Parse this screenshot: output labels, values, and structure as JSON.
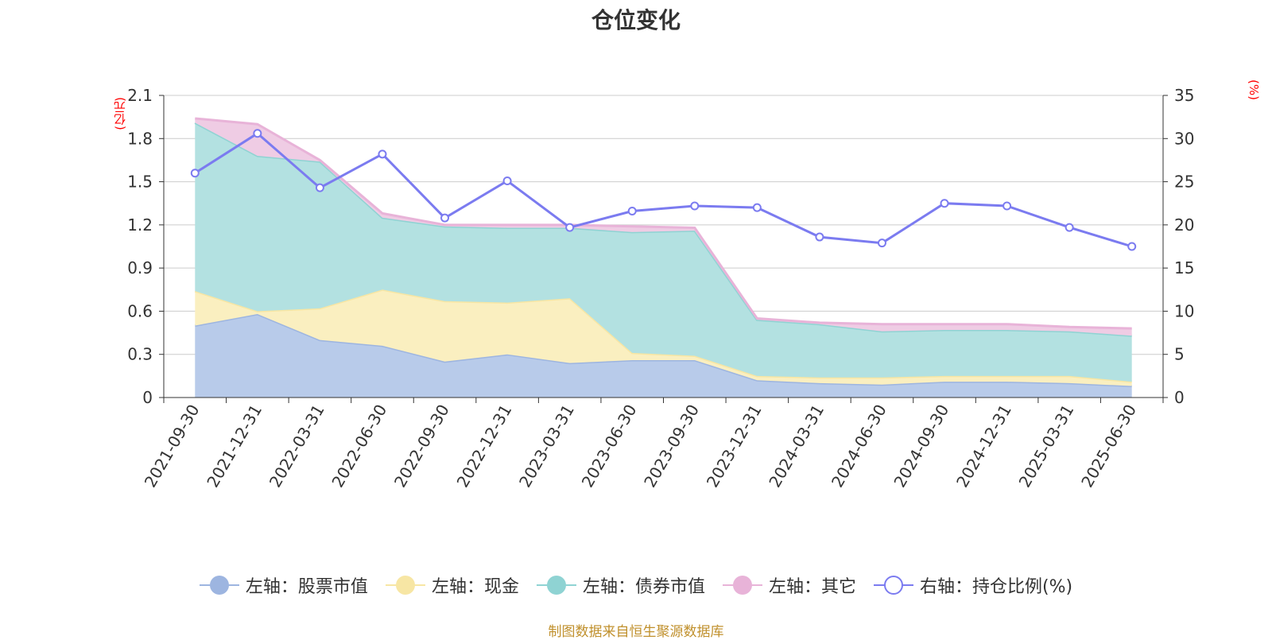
{
  "title": "仓位变化",
  "left_unit": "(亿元)",
  "right_unit": "(%)",
  "source": "制图数据来自恒生聚源数据库",
  "legend": [
    {
      "label": "左轴：股票市值",
      "color": "#9db5e0",
      "marker": "filled"
    },
    {
      "label": "左轴：现金",
      "color": "#f7e6a4",
      "marker": "filled"
    },
    {
      "label": "左轴：债券市值",
      "color": "#8fd3d3",
      "marker": "filled"
    },
    {
      "label": "左轴：其它",
      "color": "#e8b3d8",
      "marker": "filled"
    },
    {
      "label": "右轴：持仓比例(%)",
      "color": "#7b7bf0",
      "marker": "hollow"
    }
  ],
  "chart_data": {
    "type": "area",
    "title": "仓位变化",
    "categories": [
      "2021-09-30",
      "2021-12-31",
      "2022-03-31",
      "2022-06-30",
      "2022-09-30",
      "2022-12-31",
      "2023-03-31",
      "2023-06-30",
      "2023-09-30",
      "2023-12-31",
      "2024-03-31",
      "2024-06-30",
      "2024-09-30",
      "2024-12-31",
      "2025-03-31",
      "2025-06-30"
    ],
    "left_axis": {
      "label": "(亿元)",
      "ylim": [
        0,
        2.1
      ],
      "ticks": [
        "0",
        "0.3",
        "0.6",
        "0.9",
        "1.2",
        "1.5",
        "1.8",
        "2.1"
      ]
    },
    "right_axis": {
      "label": "(%)",
      "ylim": [
        0,
        35
      ],
      "ticks": [
        "0",
        "5",
        "10",
        "15",
        "20",
        "25",
        "30",
        "35"
      ]
    },
    "stacked_series": [
      {
        "name": "左轴：股票市值",
        "color": "#9db5e0",
        "fill": "#b8cbea",
        "values": [
          0.5,
          0.58,
          0.4,
          0.36,
          0.25,
          0.3,
          0.24,
          0.26,
          0.26,
          0.12,
          0.1,
          0.09,
          0.11,
          0.11,
          0.1,
          0.08
        ]
      },
      {
        "name": "左轴：现金",
        "color": "#f7e6a4",
        "fill": "#faefc0",
        "values": [
          0.24,
          0.02,
          0.22,
          0.39,
          0.42,
          0.36,
          0.45,
          0.05,
          0.03,
          0.03,
          0.04,
          0.05,
          0.04,
          0.04,
          0.05,
          0.03
        ]
      },
      {
        "name": "左轴：债券市值",
        "color": "#8fd3d3",
        "fill": "#b3e1e1",
        "values": [
          1.17,
          1.08,
          1.02,
          0.5,
          0.52,
          0.52,
          0.49,
          0.84,
          0.87,
          0.39,
          0.37,
          0.32,
          0.32,
          0.32,
          0.31,
          0.32
        ]
      },
      {
        "name": "左轴：其它",
        "color": "#e8b3d8",
        "fill": "#efcce4",
        "values": [
          0.03,
          0.22,
          0.01,
          0.03,
          0.01,
          0.02,
          0.02,
          0.04,
          0.02,
          0.01,
          0.01,
          0.05,
          0.04,
          0.04,
          0.03,
          0.05
        ]
      }
    ],
    "line_series": {
      "name": "右轴：持仓比例(%)",
      "color": "#7b7bf0",
      "axis": "right",
      "values": [
        26.0,
        30.6,
        24.3,
        28.2,
        20.8,
        25.1,
        19.7,
        21.6,
        22.2,
        22.0,
        18.6,
        17.9,
        22.5,
        22.2,
        19.7,
        17.5
      ]
    },
    "grid": true,
    "legend_position": "bottom"
  }
}
